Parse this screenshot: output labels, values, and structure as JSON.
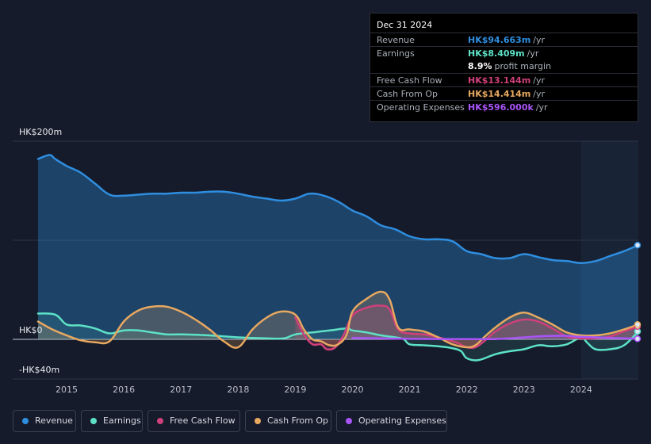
{
  "tooltip": {
    "date": "Dec 31 2024",
    "rows": [
      {
        "label": "Revenue",
        "value": "HK$94.663m",
        "suffix": "/yr",
        "color": "#2f8ee0"
      },
      {
        "label": "Earnings",
        "value": "HK$8.409m",
        "suffix": "/yr",
        "color": "#5de2c6"
      },
      {
        "label": "",
        "value": "8.9%",
        "suffix": "profit margin",
        "color": "#ffffff"
      },
      {
        "label": "Free Cash Flow",
        "value": "HK$13.144m",
        "suffix": "/yr",
        "color": "#d0407a"
      },
      {
        "label": "Cash From Op",
        "value": "HK$14.414m",
        "suffix": "/yr",
        "color": "#e8a860"
      },
      {
        "label": "Operating Expenses",
        "value": "HK$596.000k",
        "suffix": "/yr",
        "color": "#a855f7"
      }
    ]
  },
  "legend": [
    {
      "label": "Revenue",
      "color": "#2f8ee0"
    },
    {
      "label": "Earnings",
      "color": "#5de2c6"
    },
    {
      "label": "Free Cash Flow",
      "color": "#d0407a"
    },
    {
      "label": "Cash From Op",
      "color": "#e8a860"
    },
    {
      "label": "Operating Expenses",
      "color": "#a855f7"
    }
  ],
  "chart_data": {
    "type": "area",
    "y_unit": "HK$m",
    "ylim": [
      -40,
      200
    ],
    "y_tick_labels": [
      {
        "value": 200,
        "label": "HK$200m"
      },
      {
        "value": 0,
        "label": "HK$0"
      },
      {
        "value": -40,
        "label": "-HK$40m"
      }
    ],
    "x_tick_labels": [
      "2015",
      "2016",
      "2017",
      "2018",
      "2019",
      "2020",
      "2021",
      "2022",
      "2023",
      "2024"
    ],
    "xlim": [
      2014.5,
      2025.0
    ],
    "highlight_start": 2024.0,
    "grid": true,
    "legend_position": "bottom",
    "series": [
      {
        "name": "Revenue",
        "color": "#2f8ee0",
        "x": [
          2014.5,
          2014.7,
          2014.8,
          2015.0,
          2015.25,
          2015.5,
          2015.75,
          2016.0,
          2016.25,
          2016.5,
          2016.75,
          2017.0,
          2017.25,
          2017.5,
          2017.75,
          2018.0,
          2018.25,
          2018.5,
          2018.75,
          2019.0,
          2019.25,
          2019.5,
          2019.75,
          2020.0,
          2020.25,
          2020.5,
          2020.75,
          2021.0,
          2021.25,
          2021.5,
          2021.75,
          2022.0,
          2022.25,
          2022.5,
          2022.75,
          2023.0,
          2023.25,
          2023.5,
          2023.75,
          2024.0,
          2024.25,
          2024.5,
          2024.75,
          2025.0
        ],
        "values": [
          182,
          186,
          182,
          175,
          168,
          157,
          146,
          145,
          146,
          147,
          147,
          148,
          148,
          149,
          149,
          147,
          144,
          142,
          140,
          142,
          147,
          145,
          139,
          130,
          124,
          115,
          111,
          104,
          101,
          101,
          99,
          89,
          86,
          82,
          82,
          86,
          83,
          80,
          79,
          77,
          79,
          84,
          89,
          95
        ]
      },
      {
        "name": "Earnings",
        "color": "#5de2c6",
        "x": [
          2014.5,
          2014.8,
          2015.0,
          2015.25,
          2015.5,
          2015.75,
          2016.0,
          2016.25,
          2016.5,
          2016.75,
          2017.0,
          2017.5,
          2018.0,
          2018.5,
          2018.8,
          2019.0,
          2019.3,
          2019.6,
          2019.9,
          2020.0,
          2020.25,
          2020.5,
          2020.75,
          2020.9,
          2021.0,
          2021.25,
          2021.5,
          2021.75,
          2021.9,
          2022.0,
          2022.2,
          2022.5,
          2022.75,
          2023.0,
          2023.25,
          2023.5,
          2023.75,
          2024.0,
          2024.1,
          2024.25,
          2024.5,
          2024.75,
          2025.0
        ],
        "values": [
          26,
          25,
          15,
          14,
          11,
          6,
          9,
          9,
          7,
          5,
          5,
          4,
          2,
          1,
          1,
          5,
          7,
          9,
          11,
          9,
          7,
          4,
          2,
          0,
          -5,
          -6,
          -7,
          -9,
          -12,
          -19,
          -21,
          -15,
          -12,
          -10,
          -6,
          -7,
          -5,
          2,
          -3,
          -10,
          -10,
          -6,
          8
        ]
      },
      {
        "name": "Free Cash Flow",
        "color": "#d0407a",
        "x": [
          2019.0,
          2019.15,
          2019.3,
          2019.45,
          2019.55,
          2019.7,
          2019.85,
          2020.0,
          2020.25,
          2020.5,
          2020.65,
          2020.8,
          2021.0,
          2021.25,
          2021.5,
          2021.75,
          2021.85,
          2022.0,
          2022.15,
          2022.3,
          2022.5,
          2022.75,
          2023.0,
          2023.25,
          2023.5,
          2023.75,
          2024.0,
          2024.25,
          2024.5,
          2024.75,
          2025.0
        ],
        "values": [
          22,
          5,
          -5,
          -5,
          -10,
          -8,
          5,
          24,
          32,
          34,
          30,
          10,
          6,
          5,
          2,
          -2,
          -4,
          -8,
          -8,
          -2,
          8,
          16,
          20,
          18,
          11,
          3,
          1,
          1,
          3,
          8,
          13
        ]
      },
      {
        "name": "Cash From Op",
        "color": "#e8a860",
        "x": [
          2014.5,
          2014.75,
          2015.0,
          2015.25,
          2015.5,
          2015.75,
          2016.0,
          2016.25,
          2016.5,
          2016.75,
          2017.0,
          2017.25,
          2017.5,
          2017.75,
          2018.0,
          2018.25,
          2018.5,
          2018.75,
          2019.0,
          2019.15,
          2019.3,
          2019.45,
          2019.6,
          2019.75,
          2019.9,
          2020.0,
          2020.25,
          2020.5,
          2020.65,
          2020.8,
          2021.0,
          2021.25,
          2021.5,
          2021.75,
          2022.0,
          2022.15,
          2022.3,
          2022.5,
          2022.75,
          2023.0,
          2023.25,
          2023.5,
          2023.75,
          2024.0,
          2024.25,
          2024.5,
          2024.75,
          2025.0
        ],
        "values": [
          18,
          10,
          4,
          -1,
          -3,
          -2,
          18,
          29,
          33,
          33,
          28,
          20,
          10,
          -2,
          -8,
          10,
          22,
          28,
          25,
          10,
          0,
          -2,
          -6,
          -5,
          5,
          28,
          41,
          48,
          40,
          12,
          10,
          8,
          2,
          -5,
          -8,
          -6,
          2,
          12,
          22,
          27,
          22,
          15,
          7,
          4,
          4,
          6,
          10,
          15
        ]
      },
      {
        "name": "Operating Expenses",
        "color": "#a855f7",
        "x": [
          2020.0,
          2020.5,
          2021.0,
          2021.5,
          2022.0,
          2022.5,
          2023.0,
          2023.25,
          2023.5,
          2023.75,
          2024.0,
          2024.5,
          2025.0
        ],
        "values": [
          1.5,
          1.0,
          0.5,
          0.3,
          0.3,
          0.3,
          2.0,
          3.0,
          3.5,
          3.5,
          2.5,
          1.5,
          0.6
        ]
      }
    ]
  }
}
